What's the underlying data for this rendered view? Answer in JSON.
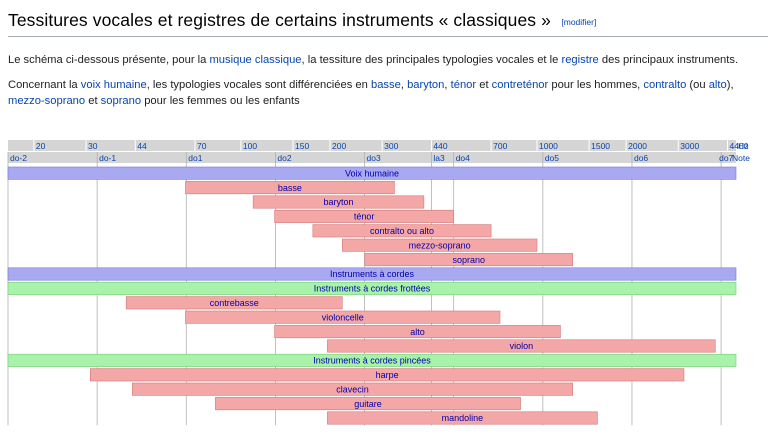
{
  "section": {
    "title": "Tessitures vocales et registres de certains instruments « classiques »",
    "edit_label": "[modifier]"
  },
  "paragraph1": {
    "t1": "Le schéma ci-dessous présente, pour la ",
    "link1": "musique classique",
    "t2": ", la tessiture des principales typologies vocales et le ",
    "link2": "registre",
    "t3": " des principaux instruments."
  },
  "paragraph2": {
    "t1": "Concernant la ",
    "link1": "voix humaine",
    "t2": ", les typologies vocales sont différenciées en ",
    "link2": "basse",
    "t3": ", ",
    "link3": "baryton",
    "t4": ", ",
    "link4": "ténor",
    "t5": " et ",
    "link5": "contreténor",
    "t6": " pour les hommes, ",
    "link6": "contralto",
    "t7": " (ou ",
    "link7": "alto",
    "t8": "),",
    "link8": "mezzo-soprano",
    "t9": " et ",
    "link9": "soprano",
    "t10": " pour les femmes ou les enfants"
  },
  "chart_data": {
    "type": "bar",
    "orientation": "horizontal-range",
    "x_scale": "log",
    "x_range_hz": [
      16.35,
      4700
    ],
    "grid": true,
    "hz_axis_unit": "Hz",
    "note_axis_unit": "Note",
    "hz_ticks": [
      20,
      30,
      44,
      70,
      100,
      150,
      200,
      300,
      440,
      700,
      1000,
      1500,
      2000,
      3000,
      4400
    ],
    "note_ticks": [
      {
        "label": "do-2",
        "hz": 16.35
      },
      {
        "label": "do-1",
        "hz": 32.7
      },
      {
        "label": "do1",
        "hz": 65.41
      },
      {
        "label": "do2",
        "hz": 130.81
      },
      {
        "label": "do3",
        "hz": 261.63
      },
      {
        "label": "la3",
        "hz": 440
      },
      {
        "label": "do4",
        "hz": 523.25
      },
      {
        "label": "do5",
        "hz": 1046.5
      },
      {
        "label": "do6",
        "hz": 2093
      },
      {
        "label": "do7",
        "hz": 4186
      }
    ],
    "rows": [
      {
        "label": "Voix humaine",
        "kind": "group",
        "low": 16.35,
        "high": 4700
      },
      {
        "label": "basse",
        "kind": "range",
        "low": 65,
        "high": 330
      },
      {
        "label": "baryton",
        "kind": "range",
        "low": 110,
        "high": 415
      },
      {
        "label": "ténor",
        "kind": "range",
        "low": 130,
        "high": 523
      },
      {
        "label": "contralto ou alto",
        "kind": "range",
        "low": 175,
        "high": 700
      },
      {
        "label": "mezzo-soprano",
        "kind": "range",
        "low": 220,
        "high": 1000
      },
      {
        "label": "soprano",
        "kind": "range",
        "low": 262,
        "high": 1320
      },
      {
        "label": "Instruments à cordes",
        "kind": "group",
        "low": 16.35,
        "high": 4700
      },
      {
        "label": "Instruments à cordes frottées",
        "kind": "subgroup",
        "low": 16.35,
        "high": 4700
      },
      {
        "label": "contrebasse",
        "kind": "range",
        "low": 41,
        "high": 220
      },
      {
        "label": "violoncelle",
        "kind": "range",
        "low": 65,
        "high": 750
      },
      {
        "label": "alto",
        "kind": "range",
        "low": 130,
        "high": 1200
      },
      {
        "label": "violon",
        "kind": "range",
        "low": 196,
        "high": 4000
      },
      {
        "label": "Instruments à cordes pincées",
        "kind": "subgroup",
        "low": 16.35,
        "high": 4700
      },
      {
        "label": "harpe",
        "kind": "range",
        "low": 31,
        "high": 3136
      },
      {
        "label": "clavecin",
        "kind": "range",
        "low": 43,
        "high": 1320
      },
      {
        "label": "guitare",
        "kind": "range",
        "low": 82,
        "high": 880
      },
      {
        "label": "mandoline",
        "kind": "range",
        "low": 196,
        "high": 1600
      }
    ]
  },
  "colors": {
    "link": "#0645ad",
    "range_fill": "#f4a7a7",
    "range_stroke": "#d27878",
    "group_fill": "#a9a9f2",
    "subgroup_fill": "#a9f2a9",
    "axis_fill": "#d5d5d5",
    "gridline": "#b0b0b0",
    "bar_text": "#0000aa"
  }
}
